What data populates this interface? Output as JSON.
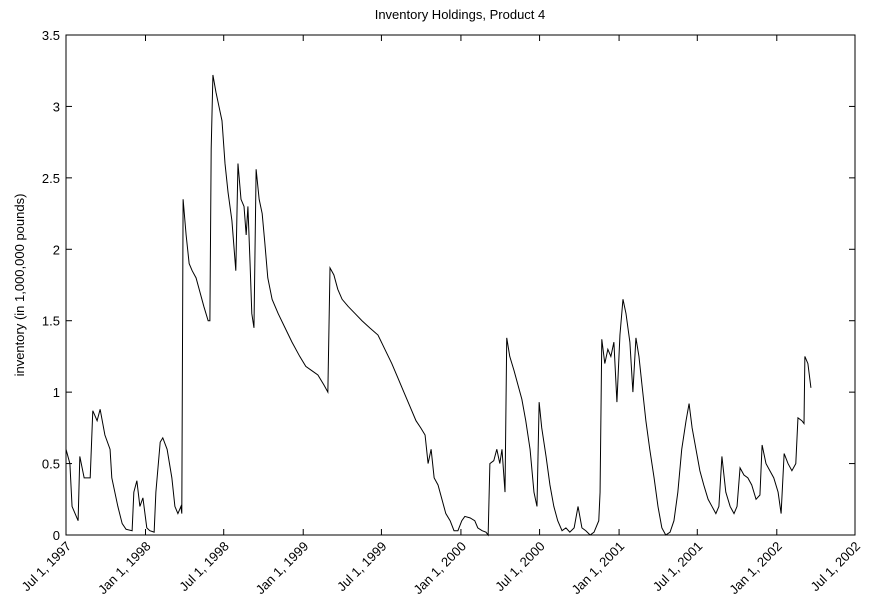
{
  "chart_data": {
    "type": "line",
    "title": "Inventory Holdings, Product 4",
    "y_label": "inventory (in 1,000,000 pounds)",
    "color": "#000000",
    "x": [
      "1997-07-01",
      "1997-07-10",
      "1997-07-15",
      "1997-07-29",
      "1997-08-02",
      "1997-08-12",
      "1997-08-26",
      "1997-09-01",
      "1997-09-11",
      "1997-09-18",
      "1997-09-29",
      "1997-10-11",
      "1997-10-15",
      "1997-10-29",
      "1997-11-08",
      "1997-11-17",
      "1997-12-01",
      "1997-12-05",
      "1997-12-12",
      "1997-12-19",
      "1997-12-26",
      "1998-01-04",
      "1998-01-11",
      "1998-01-21",
      "1998-01-25",
      "1998-02-04",
      "1998-02-10",
      "1998-02-20",
      "1998-03-03",
      "1998-03-10",
      "1998-03-17",
      "1998-03-24",
      "1998-03-26",
      "1998-03-29",
      "1998-04-05",
      "1998-04-12",
      "1998-04-19",
      "1998-04-28",
      "1998-05-07",
      "1998-05-16",
      "1998-05-26",
      "1998-05-30",
      "1998-06-02",
      "1998-06-06",
      "1998-06-13",
      "1998-06-20",
      "1998-06-27",
      "1998-07-04",
      "1998-07-11",
      "1998-07-20",
      "1998-07-29",
      "1998-08-03",
      "1998-08-10",
      "1998-08-17",
      "1998-08-22",
      "1998-08-26",
      "1998-08-31",
      "1998-09-04",
      "1998-09-09",
      "1998-09-14",
      "1998-09-21",
      "1998-09-28",
      "1998-10-04",
      "1998-10-11",
      "1998-10-21",
      "1998-11-04",
      "1998-11-20",
      "1998-12-06",
      "1998-12-24",
      "1999-01-07",
      "1999-01-21",
      "1999-02-04",
      "1999-02-18",
      "1999-02-27",
      "1999-03-04",
      "1999-03-13",
      "1999-03-22",
      "1999-04-01",
      "1999-04-15",
      "1999-05-01",
      "1999-05-17",
      "1999-06-04",
      "1999-06-23",
      "1999-07-09",
      "1999-07-25",
      "1999-08-08",
      "1999-08-22",
      "1999-09-05",
      "1999-09-19",
      "1999-09-30",
      "1999-10-10",
      "1999-10-17",
      "1999-10-24",
      "1999-10-31",
      "1999-11-09",
      "1999-11-18",
      "1999-11-27",
      "1999-12-07",
      "1999-12-16",
      "1999-12-25",
      "2000-01-03",
      "2000-01-10",
      "2000-01-22",
      "2000-02-02",
      "2000-02-09",
      "2000-02-19",
      "2000-02-28",
      "2000-03-04",
      "2000-03-08",
      "2000-03-17",
      "2000-03-24",
      "2000-03-31",
      "2000-04-05",
      "2000-04-12",
      "2000-04-16",
      "2000-04-23",
      "2000-05-03",
      "2000-05-12",
      "2000-05-21",
      "2000-05-30",
      "2000-06-09",
      "2000-06-18",
      "2000-06-25",
      "2000-06-30",
      "2000-07-06",
      "2000-07-16",
      "2000-07-25",
      "2000-08-03",
      "2000-08-12",
      "2000-08-22",
      "2000-08-31",
      "2000-09-09",
      "2000-09-19",
      "2000-09-28",
      "2000-10-07",
      "2000-10-16",
      "2000-10-26",
      "2000-11-04",
      "2000-11-15",
      "2000-11-18",
      "2000-11-22",
      "2000-11-29",
      "2000-12-06",
      "2000-12-13",
      "2000-12-20",
      "2000-12-27",
      "2001-01-03",
      "2001-01-10",
      "2001-01-17",
      "2001-01-26",
      "2001-02-02",
      "2001-02-09",
      "2001-02-16",
      "2001-02-23",
      "2001-03-04",
      "2001-03-13",
      "2001-03-23",
      "2001-04-01",
      "2001-04-10",
      "2001-04-19",
      "2001-04-29",
      "2001-05-08",
      "2001-05-17",
      "2001-05-26",
      "2001-06-05",
      "2001-06-12",
      "2001-06-19",
      "2001-06-28",
      "2001-07-07",
      "2001-07-16",
      "2001-07-26",
      "2001-08-04",
      "2001-08-13",
      "2001-08-20",
      "2001-08-27",
      "2001-09-05",
      "2001-09-15",
      "2001-09-24",
      "2001-10-01",
      "2001-10-08",
      "2001-10-17",
      "2001-10-26",
      "2001-11-04",
      "2001-11-14",
      "2001-11-23",
      "2001-11-28",
      "2001-12-07",
      "2001-12-16",
      "2001-12-25",
      "2002-01-04",
      "2002-01-11",
      "2002-01-18",
      "2002-01-27",
      "2002-02-05",
      "2002-02-14",
      "2002-02-19",
      "2002-02-28",
      "2002-03-05",
      "2002-03-07",
      "2002-03-14",
      "2002-03-21"
    ],
    "values": [
      0.6,
      0.5,
      0.2,
      0.1,
      0.55,
      0.4,
      0.4,
      0.87,
      0.8,
      0.88,
      0.7,
      0.6,
      0.4,
      0.2,
      0.08,
      0.04,
      0.03,
      0.3,
      0.38,
      0.2,
      0.26,
      0.05,
      0.03,
      0.02,
      0.3,
      0.65,
      0.68,
      0.6,
      0.4,
      0.2,
      0.15,
      0.2,
      0.15,
      2.35,
      2.1,
      1.9,
      1.85,
      1.8,
      1.7,
      1.6,
      1.5,
      1.5,
      2.7,
      3.22,
      3.1,
      3.0,
      2.9,
      2.6,
      2.4,
      2.2,
      1.85,
      2.6,
      2.35,
      2.3,
      2.1,
      2.3,
      1.9,
      1.55,
      1.45,
      2.56,
      2.35,
      2.25,
      2.05,
      1.8,
      1.65,
      1.55,
      1.45,
      1.35,
      1.25,
      1.18,
      1.15,
      1.12,
      1.05,
      1.0,
      1.87,
      1.82,
      1.72,
      1.65,
      1.6,
      1.55,
      1.5,
      1.45,
      1.4,
      1.3,
      1.2,
      1.1,
      1.0,
      0.9,
      0.8,
      0.75,
      0.7,
      0.5,
      0.6,
      0.4,
      0.35,
      0.25,
      0.15,
      0.1,
      0.03,
      0.03,
      0.1,
      0.13,
      0.12,
      0.1,
      0.05,
      0.03,
      0.02,
      0,
      0.5,
      0.52,
      0.6,
      0.5,
      0.6,
      0.3,
      1.38,
      1.25,
      1.15,
      1.05,
      0.95,
      0.8,
      0.6,
      0.3,
      0.2,
      0.93,
      0.75,
      0.55,
      0.35,
      0.2,
      0.1,
      0.03,
      0.05,
      0.02,
      0.05,
      0.2,
      0.05,
      0.03,
      0,
      0.02,
      0.1,
      0.3,
      1.37,
      1.2,
      1.3,
      1.25,
      1.35,
      0.93,
      1.4,
      1.65,
      1.55,
      1.35,
      1.0,
      1.38,
      1.25,
      1.05,
      0.8,
      0.6,
      0.4,
      0.2,
      0.05,
      0,
      0.02,
      0.1,
      0.3,
      0.6,
      0.8,
      0.92,
      0.75,
      0.6,
      0.45,
      0.35,
      0.25,
      0.2,
      0.15,
      0.2,
      0.55,
      0.3,
      0.2,
      0.15,
      0.2,
      0.47,
      0.42,
      0.4,
      0.35,
      0.25,
      0.28,
      0.63,
      0.5,
      0.45,
      0.4,
      0.3,
      0.15,
      0.57,
      0.5,
      0.45,
      0.5,
      0.82,
      0.8,
      0.78,
      1.25,
      1.2,
      1.03
    ],
    "xlim": [
      "1997-07-01",
      "2002-07-01"
    ],
    "xticks": [
      {
        "value": "1997-07-01",
        "label": "Jul 1, 1997"
      },
      {
        "value": "1998-01-01",
        "label": "Jan 1, 1998"
      },
      {
        "value": "1998-07-01",
        "label": "Jul 1, 1998"
      },
      {
        "value": "1999-01-01",
        "label": "Jan 1, 1999"
      },
      {
        "value": "1999-07-01",
        "label": "Jul 1, 1999"
      },
      {
        "value": "2000-01-01",
        "label": "Jan 1, 2000"
      },
      {
        "value": "2000-07-01",
        "label": "Jul 1, 2000"
      },
      {
        "value": "2001-01-01",
        "label": "Jan 1, 2001"
      },
      {
        "value": "2001-07-01",
        "label": "Jul 1, 2001"
      },
      {
        "value": "2002-01-01",
        "label": "Jan 1, 2002"
      },
      {
        "value": "2002-07-01",
        "label": "Jul 1, 2002"
      }
    ],
    "ylim": [
      0,
      3.5
    ],
    "yticks": [
      0,
      0.5,
      1,
      1.5,
      2,
      2.5,
      3,
      3.5
    ],
    "grid": false
  }
}
